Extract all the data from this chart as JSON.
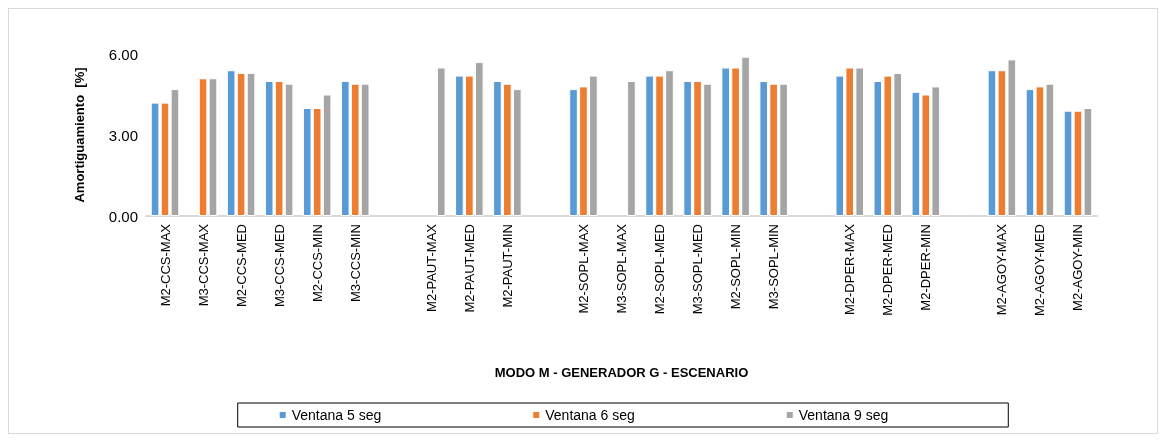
{
  "chart_data": {
    "type": "bar",
    "xlabel": "MODO M - GENERADOR G - ESCENARIO",
    "ylabel": "Amortiguamiento  [%]",
    "categories": [
      "M2-CCS-MAX",
      "M3-CCS-MAX",
      "M2-CCS-MED",
      "M3-CCS-MED",
      "M2-CCS-MIN",
      "M3-CCS-MIN",
      null,
      "M2-PAUT-MAX",
      "M2-PAUT-MED",
      "M2-PAUT-MIN",
      null,
      "M2-SOPL-MAX",
      "M3-SOPL-MAX",
      "M2-SOPL-MED",
      "M3-SOPL-MED",
      "M2-SOPL-MIN",
      "M3-SOPL-MIN",
      null,
      "M2-DPER-MAX",
      "M2-DPER-MED",
      "M2-DPER-MIN",
      null,
      "M2-AGOY-MAX",
      "M2-AGOY-MED",
      "M2-AGOY-MIN"
    ],
    "series": [
      {
        "name": "Ventana 5 seg",
        "color": "#5b9bd5",
        "values": [
          4.2,
          null,
          5.4,
          5.0,
          4.0,
          5.0,
          null,
          null,
          5.2,
          5.0,
          null,
          4.7,
          null,
          5.2,
          5.0,
          5.5,
          5.0,
          null,
          5.2,
          5.0,
          4.6,
          null,
          5.4,
          4.7,
          3.9
        ]
      },
      {
        "name": "Ventana 6 seg",
        "color": "#ed7d31",
        "values": [
          4.2,
          5.1,
          5.3,
          5.0,
          4.0,
          4.9,
          null,
          null,
          5.2,
          4.9,
          null,
          4.8,
          null,
          5.2,
          5.0,
          5.5,
          4.9,
          null,
          5.5,
          5.2,
          4.5,
          null,
          5.4,
          4.8,
          3.9
        ]
      },
      {
        "name": "Ventana 9 seg",
        "color": "#a5a5a5",
        "values": [
          4.7,
          5.1,
          5.3,
          4.9,
          4.5,
          4.9,
          null,
          5.5,
          5.7,
          4.7,
          null,
          5.2,
          5.0,
          5.4,
          4.9,
          5.9,
          4.9,
          null,
          5.5,
          5.3,
          4.8,
          null,
          5.8,
          4.9,
          4.0
        ]
      }
    ],
    "ylim": [
      0,
      6
    ],
    "yticks": [
      {
        "value": 0,
        "label": "0.00"
      },
      {
        "value": 3,
        "label": "3.00"
      },
      {
        "value": 6,
        "label": "6.00"
      }
    ],
    "grid": false,
    "legend": "bottom"
  }
}
